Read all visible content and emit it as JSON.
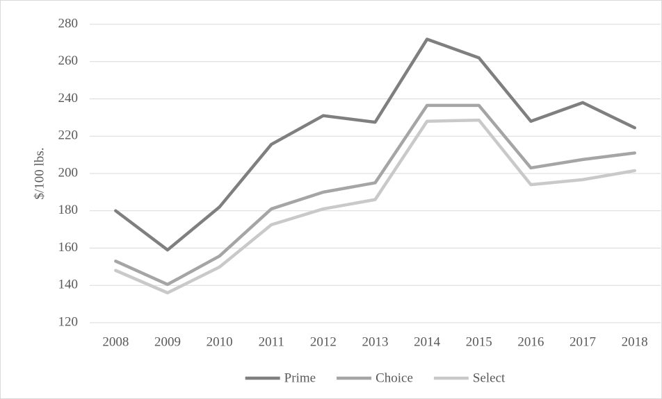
{
  "chart_data": {
    "type": "line",
    "y_label": "$/100 lbs.",
    "categories": [
      "2008",
      "2009",
      "2010",
      "2011",
      "2012",
      "2013",
      "2014",
      "2015",
      "2016",
      "2017",
      "2018"
    ],
    "series": [
      {
        "name": "Prime",
        "color": "#7f7f7f",
        "values": [
          180,
          159,
          182,
          215.6,
          231,
          227.5,
          272,
          262,
          228,
          238,
          224.5
        ]
      },
      {
        "name": "Choice",
        "color": "#a5a5a5",
        "values": [
          153,
          140.5,
          155.7,
          181,
          190,
          195,
          236.5,
          236.5,
          203,
          207.5,
          211
        ]
      },
      {
        "name": "Select",
        "color": "#c9c9c9",
        "values": [
          148,
          136,
          149.8,
          172.5,
          181,
          186,
          228,
          228.6,
          194,
          196.7,
          201.5
        ]
      }
    ],
    "ylim": [
      120,
      280
    ],
    "yticks": [
      120,
      140,
      160,
      180,
      200,
      220,
      240,
      260,
      280
    ],
    "grid": true,
    "legend": "bottom"
  }
}
